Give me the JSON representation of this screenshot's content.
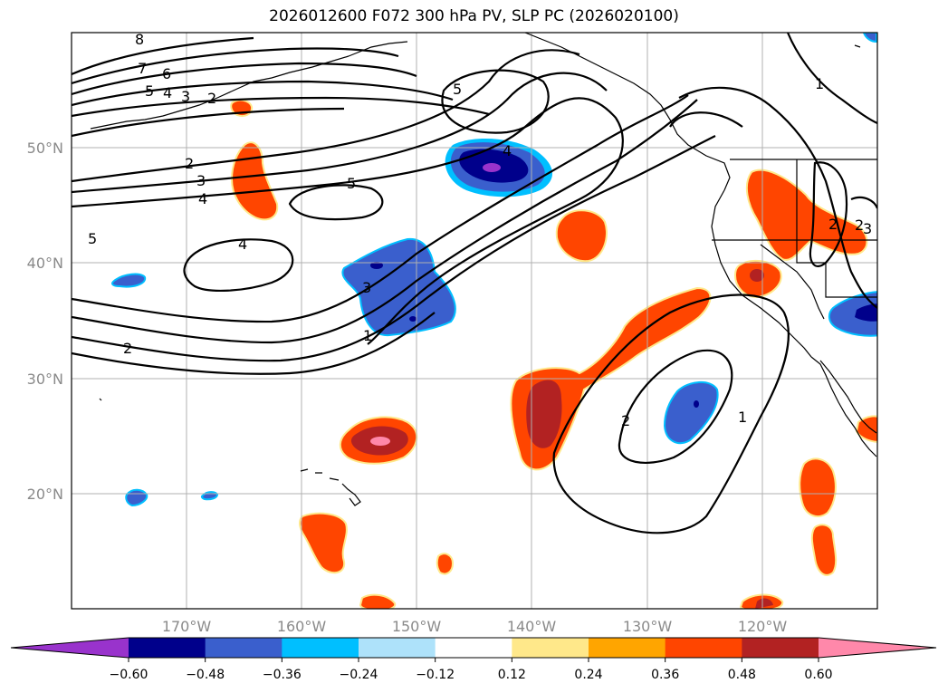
{
  "title": "2026012600 F072 300 hPa PV, SLP PC (2026020100)",
  "map": {
    "lon_labels": [
      "170°W",
      "160°W",
      "150°W",
      "140°W",
      "130°W",
      "120°W"
    ],
    "lat_labels": [
      "50°N",
      "40°N",
      "30°N",
      "20°N"
    ]
  },
  "colorbar": {
    "ticks": [
      "−0.60",
      "−0.48",
      "−0.36",
      "−0.24",
      "−0.12",
      "0.12",
      "0.24",
      "0.36",
      "0.48",
      "0.60"
    ],
    "colors": [
      "#9933cc",
      "#00008b",
      "#3a5fcd",
      "#00bfff",
      "#aee2fa",
      "#ffffff",
      "#ffe88a",
      "#ffa500",
      "#ff4500",
      "#b22222",
      "#ff88aa"
    ]
  },
  "contour_labels": [
    "8",
    "7",
    "6",
    "5",
    "4",
    "3",
    "2",
    "5",
    "2",
    "3",
    "4",
    "5",
    "4",
    "3",
    "1",
    "2",
    "5",
    "4",
    "1",
    "2",
    "1",
    "2",
    "2",
    "3"
  ]
}
